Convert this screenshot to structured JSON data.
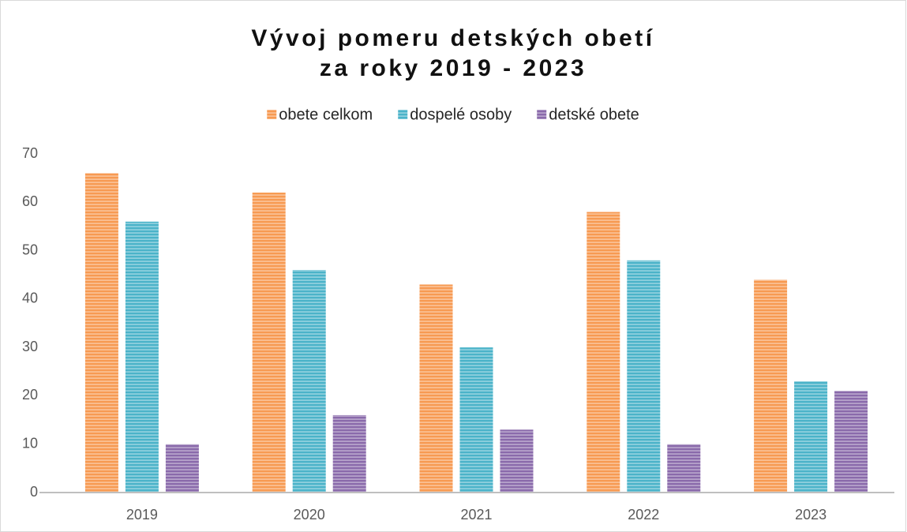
{
  "chart_data": {
    "type": "bar",
    "title": [
      "Vývoj pomeru detských obetí",
      "za roky 2019 - 2023"
    ],
    "categories": [
      "2019",
      "2020",
      "2021",
      "2022",
      "2023"
    ],
    "series": [
      {
        "name": "obete celkom",
        "color": "#f79a52",
        "values": [
          66,
          62,
          43,
          58,
          44
        ]
      },
      {
        "name": "dospelé osoby",
        "color": "#4bb3c9",
        "values": [
          56,
          46,
          30,
          48,
          23
        ]
      },
      {
        "name": "detské obete",
        "color": "#8a6aab",
        "values": [
          10,
          16,
          13,
          10,
          21
        ]
      }
    ],
    "ylim": [
      0,
      70
    ],
    "yticks": [
      0,
      10,
      20,
      30,
      40,
      50,
      60,
      70
    ],
    "grid": false,
    "legend": "top"
  }
}
